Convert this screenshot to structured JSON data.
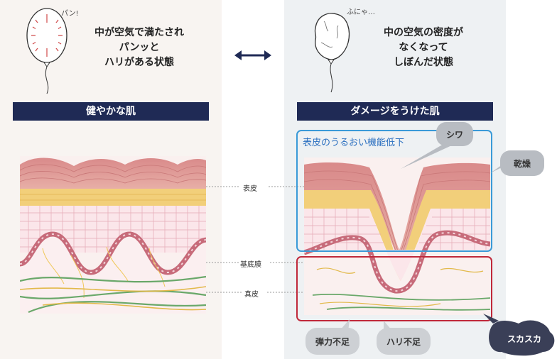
{
  "left": {
    "balloon_note": "パン!",
    "caption_lines": [
      "中が空気で満たされ",
      "パンッと",
      "ハリがある状態"
    ],
    "banner": "健やかな肌"
  },
  "right": {
    "balloon_note": "ふにゃ…",
    "caption_lines": [
      "中の空気の密度が",
      "なくなって",
      "しぼんだ状態"
    ],
    "banner": "ダメージをうけた肌",
    "box_label": "表皮のうるおい機能低下",
    "bubble_wrinkle": "シワ",
    "bubble_dry": "乾燥",
    "bubble_elastic": "弾力不足",
    "bubble_firm": "ハリ不足",
    "bubble_sparse": "スカスカ"
  },
  "layers": {
    "epidermis": "表皮",
    "basement": "基底膜",
    "dermis": "真皮"
  }
}
